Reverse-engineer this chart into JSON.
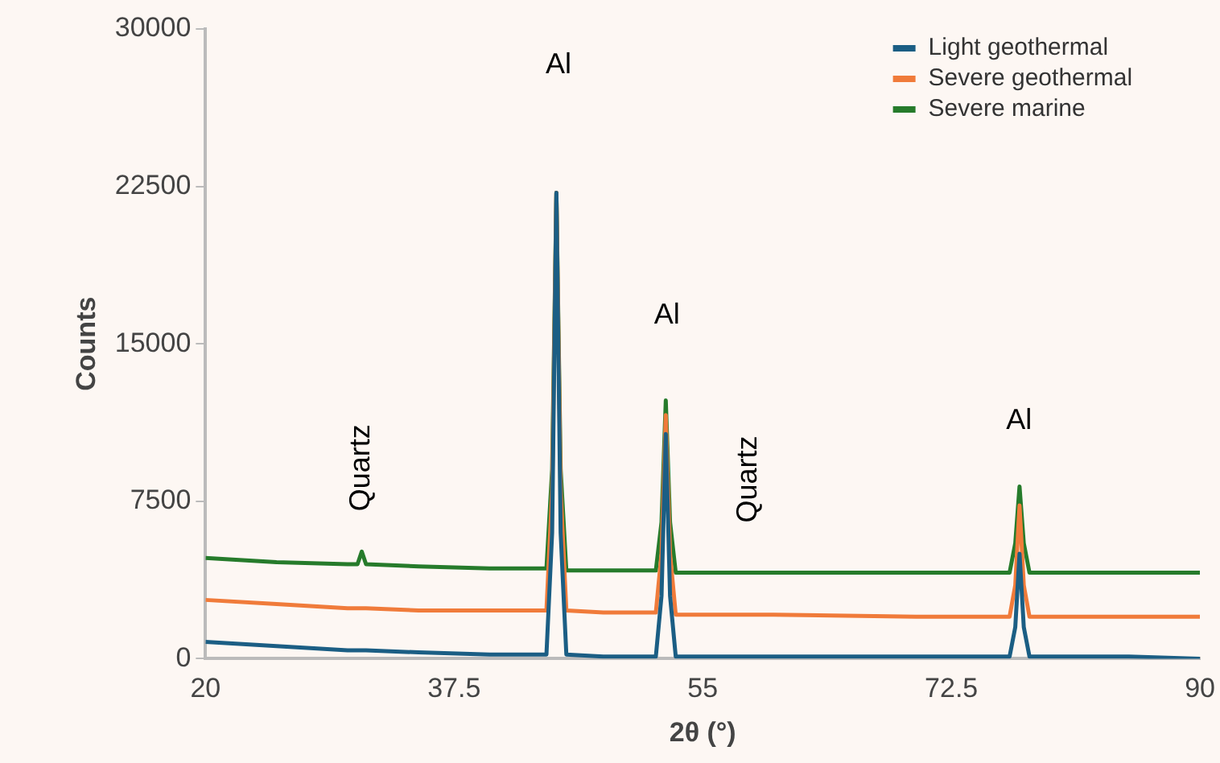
{
  "chart_data": {
    "type": "line",
    "xlabel": "2θ (°)",
    "ylabel": "Counts",
    "x": [
      20,
      25,
      30,
      30.7,
      31.0,
      31.3,
      35,
      40,
      44.0,
      44.4,
      44.7,
      45.0,
      45.4,
      48,
      51.7,
      52.1,
      52.4,
      52.7,
      53.1,
      60,
      70,
      76.6,
      77.0,
      77.3,
      77.6,
      78.0,
      85,
      90
    ],
    "series": [
      {
        "name": "Light geothermal",
        "color": "#1b5e84",
        "values": [
          800,
          600,
          400,
          400,
          400,
          400,
          300,
          200,
          200,
          6000,
          22200,
          6000,
          200,
          100,
          100,
          3000,
          10700,
          3000,
          100,
          100,
          100,
          100,
          1500,
          5000,
          1500,
          100,
          100,
          0
        ]
      },
      {
        "name": "Severe geothermal",
        "color": "#f07b3a",
        "values": [
          2800,
          2600,
          2400,
          2400,
          2400,
          2400,
          2300,
          2300,
          2300,
          8000,
          22200,
          8000,
          2300,
          2200,
          2200,
          5000,
          11600,
          5000,
          2100,
          2100,
          2000,
          2000,
          3500,
          7300,
          3500,
          2000,
          2000,
          2000
        ]
      },
      {
        "name": "Severe marine",
        "color": "#267b2b",
        "values": [
          4800,
          4600,
          4500,
          4500,
          5100,
          4500,
          4400,
          4300,
          4300,
          9000,
          22200,
          9000,
          4200,
          4200,
          4200,
          6500,
          12300,
          6500,
          4100,
          4100,
          4100,
          4100,
          5500,
          8200,
          5500,
          4100,
          4100,
          4100
        ]
      }
    ],
    "xlim": [
      20,
      90
    ],
    "xticks": [
      20,
      37.5,
      55,
      72.5,
      90
    ],
    "ylim": [
      0,
      30000
    ],
    "yticks": [
      0,
      7500,
      15000,
      22500,
      30000
    ],
    "grid": false,
    "legend": "top right",
    "marker": "none",
    "line_style": "solid",
    "annotations": [
      "Al",
      "Al",
      "Al",
      "Quartz",
      "Quartz"
    ]
  }
}
